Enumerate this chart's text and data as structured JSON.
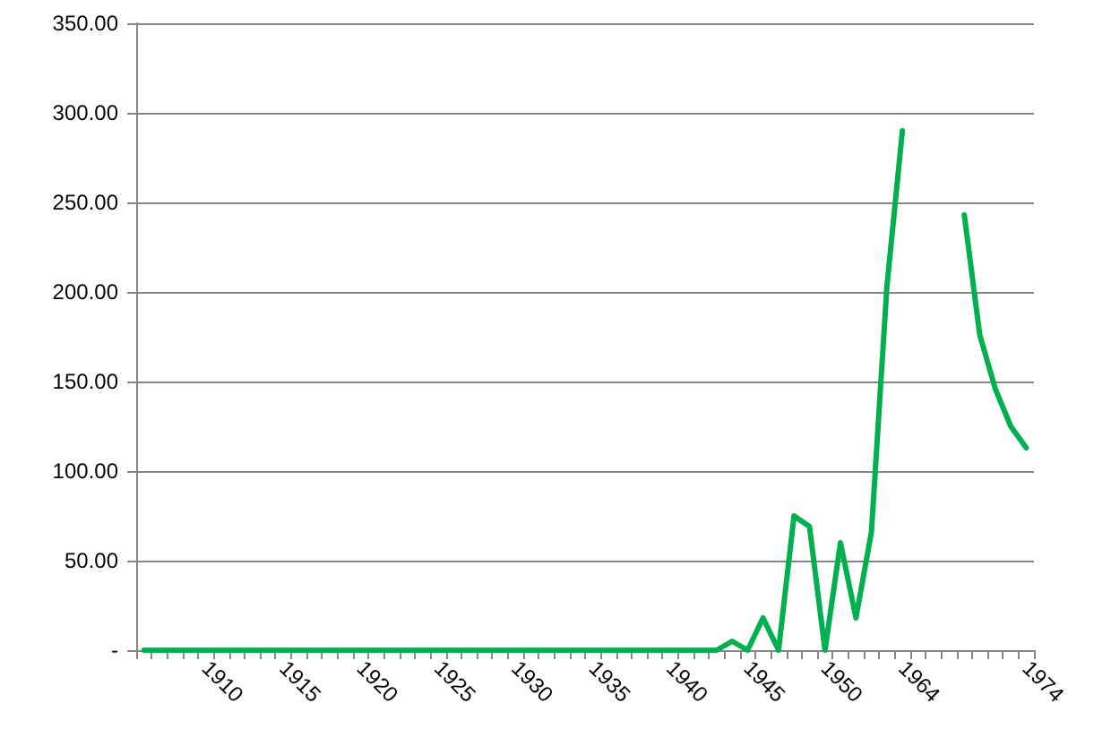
{
  "chart_data": {
    "type": "line",
    "categories": [
      null,
      null,
      null,
      null,
      "1910",
      null,
      null,
      null,
      null,
      "1915",
      null,
      null,
      null,
      null,
      "1920",
      null,
      null,
      null,
      null,
      "1925",
      null,
      null,
      null,
      null,
      "1930",
      null,
      null,
      null,
      null,
      "1935",
      null,
      null,
      null,
      null,
      "1940",
      null,
      null,
      null,
      null,
      "1945",
      null,
      null,
      null,
      null,
      "1950",
      null,
      null,
      null,
      null,
      "1964",
      null,
      null,
      null,
      null,
      null,
      null,
      null,
      "1974"
    ],
    "series": [
      {
        "color": "#00b050",
        "values": [
          0,
          0,
          0,
          0,
          0,
          0,
          0,
          0,
          0,
          0,
          0,
          0,
          0,
          0,
          0,
          0,
          0,
          0,
          0,
          0,
          0,
          0,
          0,
          0,
          0,
          0,
          0,
          0,
          0,
          0,
          0,
          0,
          0,
          0,
          0,
          0,
          0,
          0,
          5,
          0,
          18,
          0,
          75,
          69,
          0,
          60,
          18,
          66,
          203,
          290,
          null,
          null,
          null,
          243,
          176,
          146,
          125,
          113
        ]
      }
    ],
    "ylim": [
      0,
      350
    ],
    "yticks": [
      {
        "value": 0,
        "label": "-"
      },
      {
        "value": 50,
        "label": "50.00"
      },
      {
        "value": 100,
        "label": "100.00"
      },
      {
        "value": 150,
        "label": "150.00"
      },
      {
        "value": 200,
        "label": "200.00"
      },
      {
        "value": 250,
        "label": "250.00"
      },
      {
        "value": 300,
        "label": "300.00"
      },
      {
        "value": 350,
        "label": "350.00"
      }
    ],
    "grid": "y",
    "marker": "none",
    "line_style": "solid"
  }
}
